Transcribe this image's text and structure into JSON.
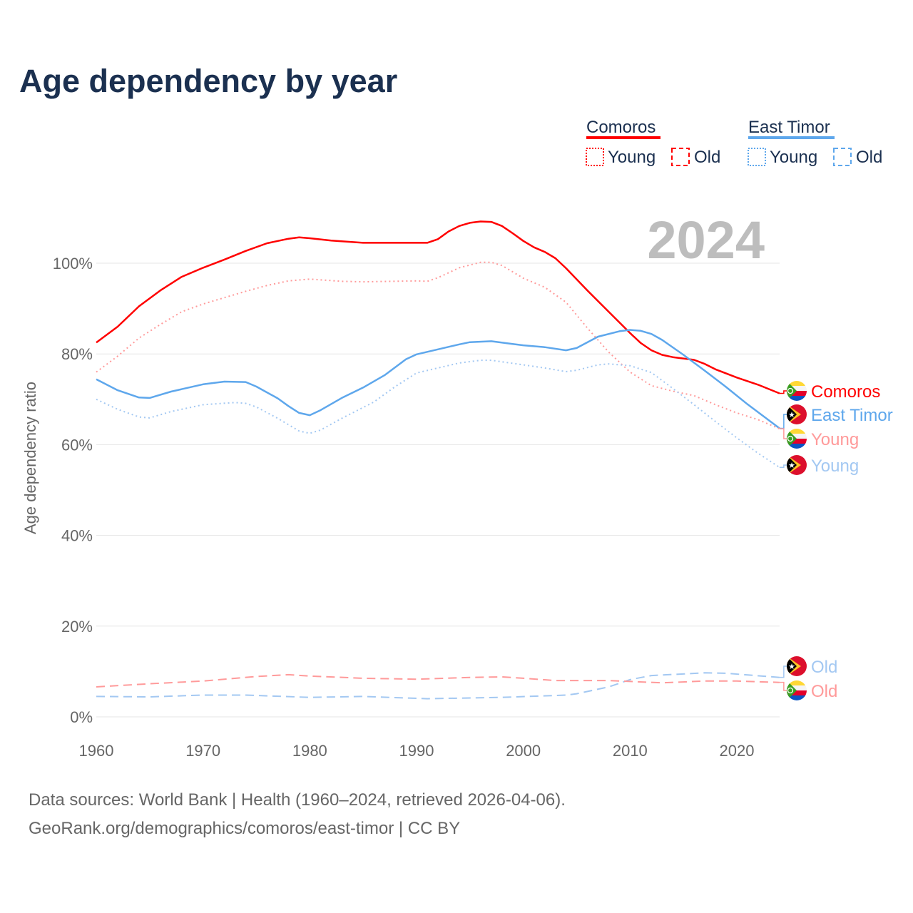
{
  "chart_data": {
    "type": "line",
    "title": "Age dependency by year",
    "xlabel": "",
    "ylabel": "Age dependency ratio",
    "xlim": [
      1960,
      2024
    ],
    "ylim": [
      0,
      110
    ],
    "x_ticks": [
      "1960",
      "1970",
      "1980",
      "1990",
      "2000",
      "2010",
      "2020"
    ],
    "y_ticks": [
      "0%",
      "20%",
      "40%",
      "60%",
      "80%",
      "100%"
    ],
    "grid": "horizontal",
    "year_label": "2024",
    "legend": {
      "placement": "top-right",
      "groups": [
        {
          "country": "Comoros",
          "color": "#ff0000",
          "young_label": "Young",
          "old_label": "Old"
        },
        {
          "country": "East Timor",
          "color": "#5ea7ec",
          "young_label": "Young",
          "old_label": "Old"
        }
      ]
    },
    "series": [
      {
        "name": "Comoros",
        "kind": "total",
        "color": "#ff0000",
        "style": "solid",
        "end_label": "Comoros",
        "flag": "comoros",
        "points": [
          [
            1960,
            82.5
          ],
          [
            1962,
            86
          ],
          [
            1964,
            90.5
          ],
          [
            1966,
            94
          ],
          [
            1968,
            97
          ],
          [
            1970,
            99
          ],
          [
            1972,
            100.8
          ],
          [
            1974,
            102.7
          ],
          [
            1976,
            104.4
          ],
          [
            1978,
            105.4
          ],
          [
            1979,
            105.7
          ],
          [
            1980,
            105.5
          ],
          [
            1982,
            105
          ],
          [
            1985,
            104.5
          ],
          [
            1990,
            104.5
          ],
          [
            1991,
            104.5
          ],
          [
            1992,
            105.3
          ],
          [
            1993,
            107
          ],
          [
            1994,
            108.2
          ],
          [
            1995,
            108.9
          ],
          [
            1996,
            109.2
          ],
          [
            1997,
            109.1
          ],
          [
            1998,
            108.2
          ],
          [
            1999,
            106.6
          ],
          [
            2000,
            104.9
          ],
          [
            2001,
            103.5
          ],
          [
            2002,
            102.5
          ],
          [
            2003,
            101.1
          ],
          [
            2004,
            98.9
          ],
          [
            2006,
            94
          ],
          [
            2008,
            89.3
          ],
          [
            2010,
            84.6
          ],
          [
            2011,
            82.4
          ],
          [
            2012,
            80.8
          ],
          [
            2013,
            79.8
          ],
          [
            2014,
            79.3
          ],
          [
            2016,
            78.7
          ],
          [
            2017,
            77.8
          ],
          [
            2018,
            76.6
          ],
          [
            2020,
            74.8
          ],
          [
            2022,
            73.2
          ],
          [
            2024,
            71.3
          ]
        ]
      },
      {
        "name": "East Timor",
        "kind": "total",
        "color": "#5ea7ec",
        "style": "solid",
        "end_label": "East Timor",
        "flag": "timor",
        "points": [
          [
            1960,
            74.4
          ],
          [
            1962,
            72
          ],
          [
            1964,
            70.4
          ],
          [
            1965,
            70.3
          ],
          [
            1967,
            71.7
          ],
          [
            1970,
            73.3
          ],
          [
            1972,
            73.9
          ],
          [
            1974,
            73.8
          ],
          [
            1975,
            72.8
          ],
          [
            1977,
            70.2
          ],
          [
            1978,
            68.5
          ],
          [
            1979,
            67
          ],
          [
            1980,
            66.5
          ],
          [
            1981,
            67.6
          ],
          [
            1983,
            70.3
          ],
          [
            1985,
            72.6
          ],
          [
            1987,
            75.3
          ],
          [
            1989,
            78.8
          ],
          [
            1990,
            79.9
          ],
          [
            1992,
            81
          ],
          [
            1994,
            82.1
          ],
          [
            1995,
            82.6
          ],
          [
            1997,
            82.8
          ],
          [
            1999,
            82.2
          ],
          [
            2000,
            81.9
          ],
          [
            2002,
            81.5
          ],
          [
            2004,
            80.8
          ],
          [
            2005,
            81.3
          ],
          [
            2007,
            83.8
          ],
          [
            2009,
            85
          ],
          [
            2010,
            85.3
          ],
          [
            2011,
            85.1
          ],
          [
            2012,
            84.4
          ],
          [
            2013,
            83.1
          ],
          [
            2015,
            79.8
          ],
          [
            2017,
            76.3
          ],
          [
            2019,
            72.7
          ],
          [
            2021,
            68.9
          ],
          [
            2024,
            63.6
          ]
        ]
      },
      {
        "name": "Comoros Young",
        "kind": "young",
        "color": "#ff9a9a",
        "style": "dotted",
        "end_label": "Young",
        "flag": "comoros",
        "points": [
          [
            1960,
            76
          ],
          [
            1962,
            79.5
          ],
          [
            1964,
            83.5
          ],
          [
            1966,
            86.5
          ],
          [
            1968,
            89.3
          ],
          [
            1970,
            91
          ],
          [
            1972,
            92.4
          ],
          [
            1974,
            93.8
          ],
          [
            1976,
            95.1
          ],
          [
            1978,
            96.1
          ],
          [
            1980,
            96.5
          ],
          [
            1983,
            96
          ],
          [
            1985,
            95.9
          ],
          [
            1990,
            96.1
          ],
          [
            1991,
            96
          ],
          [
            1992,
            96.8
          ],
          [
            1994,
            99
          ],
          [
            1996,
            100.2
          ],
          [
            1997,
            100.2
          ],
          [
            1998,
            99.5
          ],
          [
            2000,
            96.7
          ],
          [
            2002,
            94.7
          ],
          [
            2004,
            91.4
          ],
          [
            2006,
            85.7
          ],
          [
            2008,
            80.4
          ],
          [
            2010,
            76
          ],
          [
            2012,
            73
          ],
          [
            2014,
            71.8
          ],
          [
            2016,
            70.8
          ],
          [
            2018,
            68.8
          ],
          [
            2020,
            67
          ],
          [
            2022,
            65.5
          ],
          [
            2024,
            63.5
          ]
        ]
      },
      {
        "name": "East Timor Young",
        "kind": "young",
        "color": "#a3c8f2",
        "style": "dotted",
        "end_label": "Young",
        "flag": "timor",
        "points": [
          [
            1960,
            70
          ],
          [
            1962,
            67.8
          ],
          [
            1964,
            66.1
          ],
          [
            1965,
            65.9
          ],
          [
            1967,
            67.3
          ],
          [
            1970,
            68.8
          ],
          [
            1973,
            69.3
          ],
          [
            1974,
            69.1
          ],
          [
            1975,
            68.3
          ],
          [
            1977,
            65.8
          ],
          [
            1979,
            63
          ],
          [
            1980,
            62.5
          ],
          [
            1981,
            63.2
          ],
          [
            1983,
            65.8
          ],
          [
            1986,
            69.4
          ],
          [
            1988,
            72.8
          ],
          [
            1990,
            75.8
          ],
          [
            1992,
            76.9
          ],
          [
            1994,
            78
          ],
          [
            1996,
            78.6
          ],
          [
            1997,
            78.6
          ],
          [
            2000,
            77.6
          ],
          [
            2002,
            76.9
          ],
          [
            2004,
            76.1
          ],
          [
            2005,
            76.4
          ],
          [
            2007,
            77.6
          ],
          [
            2008,
            77.8
          ],
          [
            2010,
            77.4
          ],
          [
            2012,
            75.9
          ],
          [
            2014,
            72.4
          ],
          [
            2016,
            68.8
          ],
          [
            2018,
            65.1
          ],
          [
            2020,
            61.5
          ],
          [
            2022,
            58.1
          ],
          [
            2024,
            55
          ]
        ]
      },
      {
        "name": "East Timor Old",
        "kind": "old",
        "color": "#a3c8f2",
        "style": "dashed",
        "end_label": "Old",
        "flag": "timor",
        "points": [
          [
            1960,
            4.5
          ],
          [
            1965,
            4.4
          ],
          [
            1970,
            4.8
          ],
          [
            1974,
            4.8
          ],
          [
            1980,
            4.3
          ],
          [
            1985,
            4.5
          ],
          [
            1991,
            4
          ],
          [
            1998,
            4.3
          ],
          [
            2004,
            4.8
          ],
          [
            2005,
            5.1
          ],
          [
            2008,
            6.6
          ],
          [
            2010,
            8.2
          ],
          [
            2012,
            9.1
          ],
          [
            2017,
            9.7
          ],
          [
            2019,
            9.6
          ],
          [
            2024,
            8.7
          ]
        ]
      },
      {
        "name": "Comoros Old",
        "kind": "old",
        "color": "#ff9a9a",
        "style": "dashed",
        "end_label": "Old",
        "flag": "comoros",
        "points": [
          [
            1960,
            6.6
          ],
          [
            1965,
            7.3
          ],
          [
            1970,
            7.9
          ],
          [
            1975,
            8.9
          ],
          [
            1978,
            9.3
          ],
          [
            1980,
            9.0
          ],
          [
            1985,
            8.5
          ],
          [
            1990,
            8.3
          ],
          [
            1995,
            8.7
          ],
          [
            1998,
            8.8
          ],
          [
            2000,
            8.5
          ],
          [
            2003,
            8.0
          ],
          [
            2008,
            8.0
          ],
          [
            2013,
            7.5
          ],
          [
            2017,
            7.9
          ],
          [
            2020,
            7.9
          ],
          [
            2024,
            7.6
          ]
        ]
      }
    ]
  },
  "footer": {
    "source": "Data sources: World Bank | Health (1960–2024, retrieved 2026-04-06).",
    "credit": "GeoRank.org/demographics/comoros/east-timor | CC BY"
  }
}
